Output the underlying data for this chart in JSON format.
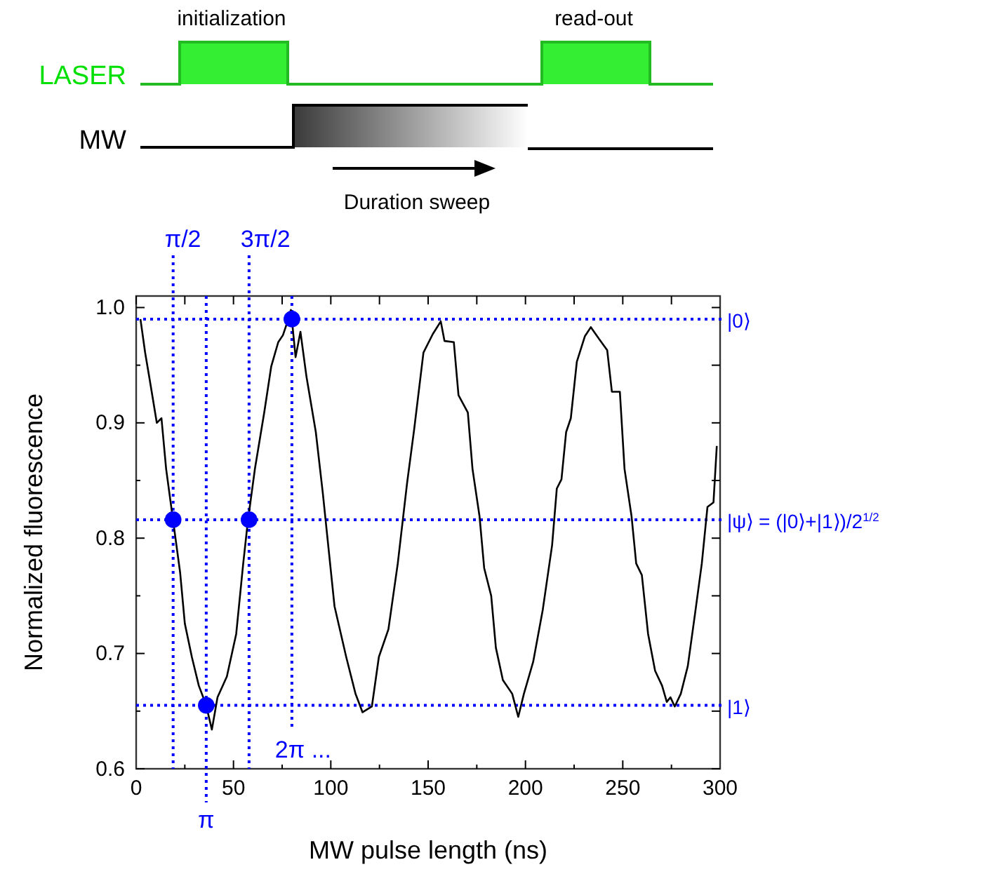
{
  "chart_data": {
    "type": "line",
    "xlabel": "MW pulse length (ns)",
    "ylabel": "Normalized fluorescence",
    "xlim": [
      0,
      300
    ],
    "ylim": [
      0.6,
      1.01
    ],
    "xticks": [
      0,
      {
        "value": 25,
        "label": null
      },
      50,
      {
        "value": 75,
        "label": null
      },
      100,
      {
        "value": 125,
        "label": null
      },
      150,
      {
        "value": 175,
        "label": null
      },
      200,
      {
        "value": 225,
        "label": null
      },
      250,
      {
        "value": 275,
        "label": null
      },
      300
    ],
    "yticks": [
      0.6,
      {
        "value": 0.65,
        "label": null
      },
      0.7,
      {
        "value": 0.75,
        "label": null
      },
      0.8,
      {
        "value": 0.85,
        "label": null
      },
      0.9,
      {
        "value": 0.95,
        "label": null
      },
      {
        "value": 1.0,
        "label": "1.0"
      }
    ],
    "grid": false,
    "series": [
      {
        "color": "#000000",
        "line_style": "solid",
        "marker": "none",
        "x": [
          2.2,
          4.6,
          7,
          10.6,
          13,
          15.4,
          19,
          22.6,
          25,
          28.6,
          32.2,
          35.8,
          38.9,
          41.8,
          46.6,
          51.4,
          55,
          57.4,
          61,
          65.8,
          69.4,
          73,
          75.4,
          77.8,
          79.5,
          81.9,
          84.4,
          87.5,
          92.3,
          95.9,
          101.9,
          107.9,
          112.7,
          116.3,
          121.1,
          124.7,
          129.6,
          134.4,
          139.2,
          142.8,
          147.6,
          152.4,
          156.5,
          158.4,
          163.2,
          165.6,
          170.4,
          172.8,
          176.4,
          178.8,
          182.4,
          184.8,
          188.4,
          193.2,
          196.3,
          199.2,
          204,
          208.9,
          213.7,
          216.1,
          218.5,
          220.9,
          223.3,
          226.4,
          230.5,
          233.6,
          237.7,
          242,
          244.4,
          248.5,
          250.9,
          254.5,
          256.9,
          259.8,
          263,
          266.6,
          270.2,
          272.6,
          274.5,
          276.7,
          279.8,
          283.4,
          287,
          290.6,
          293.5,
          296.6,
          298.3
        ],
        "values": [
          0.99,
          0.961,
          0.937,
          0.9,
          0.904,
          0.86,
          0.815,
          0.77,
          0.726,
          0.697,
          0.672,
          0.656,
          0.634,
          0.662,
          0.68,
          0.717,
          0.778,
          0.815,
          0.86,
          0.909,
          0.949,
          0.97,
          0.976,
          0.988,
          0.998,
          0.957,
          0.979,
          0.94,
          0.892,
          0.839,
          0.741,
          0.697,
          0.665,
          0.649,
          0.654,
          0.697,
          0.721,
          0.778,
          0.848,
          0.894,
          0.961,
          0.977,
          0.988,
          0.971,
          0.97,
          0.924,
          0.909,
          0.86,
          0.819,
          0.774,
          0.75,
          0.705,
          0.677,
          0.665,
          0.645,
          0.665,
          0.693,
          0.738,
          0.794,
          0.843,
          0.851,
          0.892,
          0.904,
          0.953,
          0.975,
          0.983,
          0.973,
          0.963,
          0.927,
          0.927,
          0.86,
          0.819,
          0.778,
          0.768,
          0.717,
          0.685,
          0.672,
          0.658,
          0.662,
          0.654,
          0.665,
          0.689,
          0.733,
          0.778,
          0.827,
          0.831,
          0.88
        ]
      },
      {
        "type": "scatter",
        "color": "#0000ff",
        "marker": "circle",
        "x": [
          19,
          36,
          58,
          80
        ],
        "values": [
          0.816,
          0.655,
          0.816,
          0.99
        ]
      }
    ],
    "ref_lines": [
      {
        "axis": "y",
        "value": 0.99,
        "label": "|0⟩",
        "color": "#0000ff",
        "line_style": "dotted"
      },
      {
        "axis": "y",
        "value": 0.816,
        "label": "|ψ⟩ = (|0⟩+|1⟩)/2$^{1/2}$",
        "color": "#0000ff",
        "line_style": "dotted"
      },
      {
        "axis": "y",
        "value": 0.655,
        "label": "|1⟩",
        "color": "#0000ff",
        "line_style": "dotted"
      },
      {
        "axis": "x",
        "value": 19,
        "label": "π/2",
        "color": "#0000ff",
        "line_style": "dotted"
      },
      {
        "axis": "x",
        "value": 36,
        "label": "π",
        "color": "#0000ff",
        "line_style": "dotted"
      },
      {
        "axis": "x",
        "value": 58,
        "label": "3π/2",
        "color": "#0000ff",
        "line_style": "dotted"
      },
      {
        "axis": "x",
        "value": 80,
        "label": "2π ...",
        "color": "#0000ff",
        "line_style": "dotted"
      }
    ],
    "annotations": [
      "initialization",
      "read-out",
      "LASER",
      "MW",
      "Duration sweep"
    ]
  }
}
